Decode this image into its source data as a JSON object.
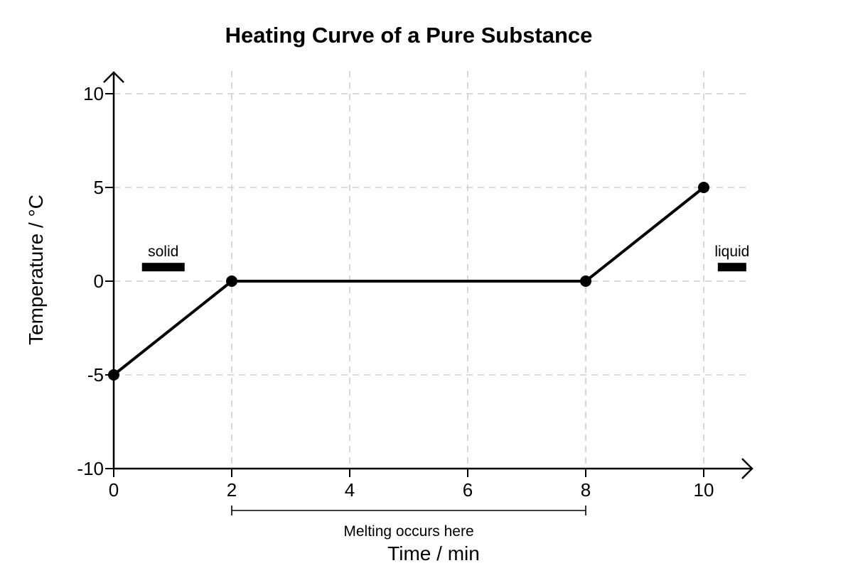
{
  "chart_data": {
    "type": "line",
    "title": "Heating Curve of a Pure Substance",
    "xlabel": "Time / min",
    "ylabel": "Temperature / °C",
    "xlim": [
      0,
      10.8
    ],
    "ylim": [
      -10,
      11
    ],
    "x_ticks": [
      0,
      2,
      4,
      6,
      8,
      10
    ],
    "y_ticks": [
      -10,
      -5,
      0,
      5,
      10
    ],
    "x_tick_labels": [
      "0",
      "2",
      "4",
      "6",
      "8",
      "10"
    ],
    "y_tick_labels": [
      "-10",
      "-5",
      "0",
      "5",
      "10"
    ],
    "grid": true,
    "series": [
      {
        "x": [
          0,
          2,
          8,
          10
        ],
        "y": [
          -5,
          0,
          0,
          5
        ]
      }
    ],
    "annotations": [
      {
        "text": "solid",
        "x": 0.84,
        "y": 0.75,
        "marker": "bar"
      },
      {
        "text": "liquid",
        "x": 10.48,
        "y": 0.75,
        "marker": "bar"
      }
    ],
    "range_annotation": {
      "text": "Melting occurs here",
      "x_start": 2,
      "x_end": 8
    }
  }
}
